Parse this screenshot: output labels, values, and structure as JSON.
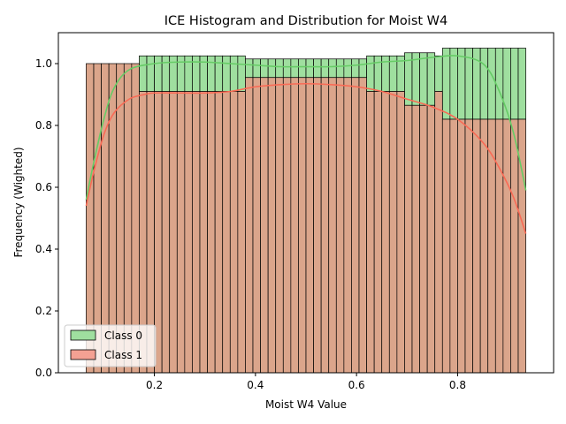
{
  "chart_data": {
    "type": "histogram",
    "title": "ICE Histogram and Distribution for Moist W4",
    "xlabel": "Moist W4 Value",
    "ylabel": "Frequency (Wighted)",
    "xlim": [
      0.01,
      0.99
    ],
    "ylim": [
      0,
      1.1
    ],
    "xticks": [
      0.2,
      0.4,
      0.6,
      0.8
    ],
    "xtick_labels": [
      "0.2",
      "0.4",
      "0.6",
      "0.8"
    ],
    "yticks": [
      0.0,
      0.2,
      0.4,
      0.6,
      0.8,
      1.0
    ],
    "ytick_labels": [
      "0.0",
      "0.2",
      "0.4",
      "0.6",
      "0.8",
      "1.0"
    ],
    "legend_position": "lower-left",
    "bin_edges": [
      0.065,
      0.08,
      0.095,
      0.11,
      0.125,
      0.14,
      0.155,
      0.17,
      0.185,
      0.2,
      0.215,
      0.23,
      0.245,
      0.26,
      0.275,
      0.29,
      0.305,
      0.32,
      0.335,
      0.35,
      0.365,
      0.38,
      0.395,
      0.41,
      0.425,
      0.44,
      0.455,
      0.47,
      0.485,
      0.5,
      0.515,
      0.53,
      0.545,
      0.56,
      0.575,
      0.59,
      0.605,
      0.62,
      0.635,
      0.65,
      0.665,
      0.68,
      0.695,
      0.71,
      0.725,
      0.74,
      0.755,
      0.77,
      0.785,
      0.8,
      0.815,
      0.83,
      0.845,
      0.86,
      0.875,
      0.89,
      0.905,
      0.92,
      0.935
    ],
    "series": [
      {
        "name": "Class 0",
        "color": "#9fdf9f",
        "line_color": "#66cc66",
        "values": [
          1.0,
          1.0,
          1.0,
          1.0,
          1.0,
          1.0,
          1.0,
          1.025,
          1.025,
          1.025,
          1.025,
          1.025,
          1.025,
          1.025,
          1.025,
          1.025,
          1.025,
          1.025,
          1.025,
          1.025,
          1.025,
          1.015,
          1.015,
          1.015,
          1.015,
          1.015,
          1.015,
          1.015,
          1.015,
          1.015,
          1.015,
          1.015,
          1.015,
          1.015,
          1.015,
          1.015,
          1.015,
          1.025,
          1.025,
          1.025,
          1.025,
          1.025,
          1.035,
          1.035,
          1.035,
          1.035,
          1.025,
          1.05,
          1.05,
          1.05,
          1.05,
          1.05,
          1.05,
          1.05,
          1.05,
          1.05,
          1.05,
          1.05
        ],
        "kde": {
          "x": [
            0.065,
            0.08,
            0.1,
            0.12,
            0.15,
            0.2,
            0.25,
            0.3,
            0.35,
            0.4,
            0.45,
            0.5,
            0.55,
            0.6,
            0.65,
            0.7,
            0.75,
            0.8,
            0.85,
            0.88,
            0.91,
            0.935
          ],
          "y": [
            0.56,
            0.68,
            0.82,
            0.92,
            0.98,
            1.0,
            1.005,
            1.005,
            1.0,
            0.995,
            0.99,
            0.99,
            0.99,
            0.995,
            1.005,
            1.01,
            1.02,
            1.025,
            1.0,
            0.92,
            0.78,
            0.59
          ]
        }
      },
      {
        "name": "Class 1",
        "color": "#f4a193",
        "line_color": "#fa6a55",
        "values": [
          1.0,
          1.0,
          1.0,
          1.0,
          1.0,
          1.0,
          1.0,
          0.91,
          0.91,
          0.91,
          0.91,
          0.91,
          0.91,
          0.91,
          0.91,
          0.91,
          0.91,
          0.91,
          0.91,
          0.91,
          0.91,
          0.955,
          0.955,
          0.955,
          0.955,
          0.955,
          0.955,
          0.955,
          0.955,
          0.955,
          0.955,
          0.955,
          0.955,
          0.955,
          0.955,
          0.955,
          0.955,
          0.91,
          0.91,
          0.91,
          0.91,
          0.91,
          0.865,
          0.865,
          0.865,
          0.865,
          0.91,
          0.82,
          0.82,
          0.82,
          0.82,
          0.82,
          0.82,
          0.82,
          0.82,
          0.82,
          0.82,
          0.82
        ],
        "kde": {
          "x": [
            0.065,
            0.08,
            0.1,
            0.12,
            0.15,
            0.18,
            0.2,
            0.25,
            0.3,
            0.35,
            0.4,
            0.45,
            0.5,
            0.55,
            0.6,
            0.65,
            0.7,
            0.75,
            0.8,
            0.85,
            0.88,
            0.91,
            0.935
          ],
          "y": [
            0.54,
            0.65,
            0.77,
            0.84,
            0.885,
            0.9,
            0.905,
            0.905,
            0.905,
            0.91,
            0.925,
            0.932,
            0.935,
            0.932,
            0.925,
            0.91,
            0.885,
            0.86,
            0.82,
            0.745,
            0.67,
            0.57,
            0.45
          ]
        }
      }
    ],
    "overlap_color": "#dba58b"
  }
}
